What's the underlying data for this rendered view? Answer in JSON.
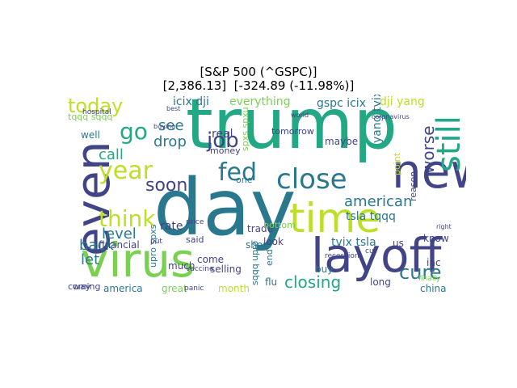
{
  "figure": {
    "title_line_1": "[S&P 500 (^GSPC)]",
    "title_line_2": "[2,386.13]  [-324.89 (-11.98%)]"
  },
  "word_cloud": {
    "colors": [
      "#440154",
      "#414487",
      "#2a788e",
      "#22a884",
      "#7ad151",
      "#bddf26",
      "#fde725"
    ],
    "words": [
      {
        "text": "trump",
        "color": "#22a884"
      },
      {
        "text": "day",
        "color": "#2a788e"
      },
      {
        "text": "new",
        "color": "#414487"
      },
      {
        "text": "virus",
        "color": "#7ad151"
      },
      {
        "text": "time",
        "color": "#bddf26"
      },
      {
        "text": "layoff",
        "color": "#414487"
      },
      {
        "text": "even",
        "color": "#414487"
      },
      {
        "text": "close",
        "color": "#2a788e"
      },
      {
        "text": "still",
        "color": "#22a884"
      },
      {
        "text": "year",
        "color": "#bddf26"
      },
      {
        "text": "fed",
        "color": "#2a788e"
      },
      {
        "text": "think",
        "color": "#bddf26"
      },
      {
        "text": "go",
        "color": "#22a884"
      },
      {
        "text": "today",
        "color": "#bddf26"
      },
      {
        "text": "job",
        "color": "#414487"
      },
      {
        "text": "soon",
        "color": "#414487"
      },
      {
        "text": "cure",
        "color": "#2a788e"
      },
      {
        "text": "worse",
        "color": "#414487"
      },
      {
        "text": "american",
        "color": "#2a788e"
      },
      {
        "text": "closing",
        "color": "#22a884"
      },
      {
        "text": "drop",
        "color": "#2a788e"
      },
      {
        "text": "see",
        "color": "#2a788e"
      },
      {
        "text": "level",
        "color": "#2a788e"
      },
      {
        "text": "back",
        "color": "#2a788e"
      },
      {
        "text": "call",
        "color": "#22a884"
      },
      {
        "text": "let",
        "color": "#2a788e"
      },
      {
        "text": "everything",
        "color": "#7ad151"
      },
      {
        "text": "icix dji",
        "color": "#2a788e"
      },
      {
        "text": "gspc icix",
        "color": "#2a788e"
      },
      {
        "text": "dji yang",
        "color": "#bddf26"
      },
      {
        "text": "tsla tqqq",
        "color": "#2a788e"
      },
      {
        "text": "tvix tsla",
        "color": "#2a788e"
      },
      {
        "text": "yang tvix",
        "color": "#2a788e"
      },
      {
        "text": "tqqq sqqq",
        "color": "#7ad151"
      },
      {
        "text": "sqqq upro",
        "color": "#2a788e"
      },
      {
        "text": "upro spxs",
        "color": "#2a788e"
      },
      {
        "text": "spxs spxu",
        "color": "#7ad151"
      },
      {
        "text": "real",
        "color": "#414487"
      },
      {
        "text": "rate",
        "color": "#414487"
      },
      {
        "text": "come",
        "color": "#414487"
      },
      {
        "text": "much",
        "color": "#414487"
      },
      {
        "text": "selling",
        "color": "#414487"
      },
      {
        "text": "financial",
        "color": "#414487"
      },
      {
        "text": "america",
        "color": "#2a788e"
      },
      {
        "text": "great",
        "color": "#7ad151"
      },
      {
        "text": "month",
        "color": "#bddf26"
      },
      {
        "text": "flu",
        "color": "#2a788e"
      },
      {
        "text": "buy",
        "color": "#2a788e"
      },
      {
        "text": "long",
        "color": "#414487"
      },
      {
        "text": "china",
        "color": "#2a788e"
      },
      {
        "text": "inc",
        "color": "#414487"
      },
      {
        "text": "know",
        "color": "#414487"
      },
      {
        "text": "us",
        "color": "#414487"
      },
      {
        "text": "trade",
        "color": "#414487"
      },
      {
        "text": "short",
        "color": "#2a788e"
      },
      {
        "text": "look",
        "color": "#414487"
      },
      {
        "text": "maybe",
        "color": "#414487"
      },
      {
        "text": "tomorrow",
        "color": "#414487"
      },
      {
        "text": "coming",
        "color": "#414487"
      },
      {
        "text": "way",
        "color": "#414487"
      },
      {
        "text": "money",
        "color": "#414487"
      },
      {
        "text": "said",
        "color": "#414487"
      },
      {
        "text": "well",
        "color": "#2a788e"
      },
      {
        "text": "bottom",
        "color": "#7ad151"
      },
      {
        "text": "end",
        "color": "#2a788e"
      },
      {
        "text": "reason",
        "color": "#414487"
      },
      {
        "text": "point",
        "color": "#bddf26"
      },
      {
        "text": "one",
        "color": "#2a788e"
      },
      {
        "text": "hospital",
        "color": "#414487"
      },
      {
        "text": "vaccine",
        "color": "#414487"
      },
      {
        "text": "price",
        "color": "#414487"
      },
      {
        "text": "buying",
        "color": "#414487"
      },
      {
        "text": "panic",
        "color": "#414487"
      },
      {
        "text": "recession",
        "color": "#414487"
      },
      {
        "text": "finally",
        "color": "#7ad151"
      },
      {
        "text": "coronavirus",
        "color": "#414487"
      },
      {
        "text": "best",
        "color": "#414487"
      },
      {
        "text": "world",
        "color": "#414487"
      },
      {
        "text": "right",
        "color": "#414487"
      },
      {
        "text": "cut",
        "color": "#414487"
      },
      {
        "text": "put",
        "color": "#414487"
      }
    ]
  }
}
